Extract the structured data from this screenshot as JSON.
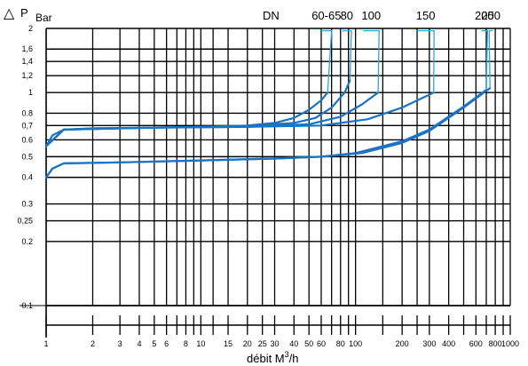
{
  "chart_data": {
    "type": "line",
    "title": "",
    "ylabel_symbol": "△",
    "ylabel": "P",
    "yunit": "Bar",
    "xlabel_prefix": "débit  M",
    "xlabel_sup": "3",
    "xlabel_suffix": "/h",
    "legend_title": "DN",
    "xscale": "log",
    "yscale": "log",
    "xlim": [
      1,
      1000
    ],
    "ylim": [
      0.1,
      2
    ],
    "grid": true,
    "colors": {
      "curve": "#1a73c4",
      "callout": "#2aa7dd",
      "grid": "#000000"
    },
    "y_ticks": [
      {
        "v": 2,
        "label": "2"
      },
      {
        "v": 1.6,
        "label": "1,6"
      },
      {
        "v": 1.4,
        "label": "1,4"
      },
      {
        "v": 1.2,
        "label": "1,2"
      },
      {
        "v": 1,
        "label": "1"
      },
      {
        "v": 0.8,
        "label": "0.8"
      },
      {
        "v": 0.7,
        "label": "0,7"
      },
      {
        "v": 0.6,
        "label": "0.6"
      },
      {
        "v": 0.5,
        "label": "0.5"
      },
      {
        "v": 0.4,
        "label": "0.4"
      },
      {
        "v": 0.3,
        "label": "0.3"
      },
      {
        "v": 0.25,
        "label": "0,25"
      },
      {
        "v": 0.2,
        "label": "0.2"
      },
      {
        "v": 0.1,
        "label": "0.1"
      }
    ],
    "x_ticks": [
      {
        "v": 1,
        "label": "1"
      },
      {
        "v": 2,
        "label": "2"
      },
      {
        "v": 3,
        "label": "3"
      },
      {
        "v": 4,
        "label": "4"
      },
      {
        "v": 5,
        "label": "5"
      },
      {
        "v": 6,
        "label": "6"
      },
      {
        "v": 8,
        "label": "8"
      },
      {
        "v": 10,
        "label": "10"
      },
      {
        "v": 15,
        "label": "15"
      },
      {
        "v": 20,
        "label": "20"
      },
      {
        "v": 25,
        "label": "25"
      },
      {
        "v": 30,
        "label": "30"
      },
      {
        "v": 40,
        "label": "40"
      },
      {
        "v": 50,
        "label": "50"
      },
      {
        "v": 60,
        "label": "60"
      },
      {
        "v": 80,
        "label": "80"
      },
      {
        "v": 100,
        "label": "100"
      },
      {
        "v": 200,
        "label": "200"
      },
      {
        "v": 300,
        "label": "300"
      },
      {
        "v": 400,
        "label": "400"
      },
      {
        "v": 600,
        "label": "600"
      },
      {
        "v": 800,
        "label": "800"
      },
      {
        "v": 1000,
        "label": "1000"
      }
    ],
    "x_grid_lines": [
      2,
      3,
      4,
      5,
      6,
      7,
      8,
      9,
      10,
      12,
      15,
      20,
      25,
      30,
      40,
      50,
      60,
      70,
      80,
      90,
      100,
      150,
      200,
      250,
      300,
      400,
      500,
      600,
      700,
      800,
      900,
      1000
    ],
    "series": [
      {
        "name": "60-65",
        "points": [
          [
            1,
            0.56
          ],
          [
            1.1,
            0.63
          ],
          [
            1.3,
            0.67
          ],
          [
            2,
            0.68
          ],
          [
            5,
            0.685
          ],
          [
            10,
            0.69
          ],
          [
            20,
            0.7
          ],
          [
            30,
            0.72
          ],
          [
            40,
            0.76
          ],
          [
            50,
            0.83
          ],
          [
            60,
            0.92
          ],
          [
            66,
            1.0
          ]
        ],
        "callout": [
          [
            66,
            1.0
          ],
          [
            70,
            1.95
          ],
          [
            60,
            1.95
          ]
        ]
      },
      {
        "name": "80",
        "points": [
          [
            1,
            0.56
          ],
          [
            1.3,
            0.67
          ],
          [
            5,
            0.685
          ],
          [
            20,
            0.695
          ],
          [
            40,
            0.72
          ],
          [
            55,
            0.76
          ],
          [
            70,
            0.85
          ],
          [
            85,
            1.0
          ],
          [
            92,
            1.14
          ]
        ],
        "callout": [
          [
            92,
            1.14
          ],
          [
            94,
            1.95
          ],
          [
            82,
            1.95
          ]
        ]
      },
      {
        "name": "100",
        "points": [
          [
            1,
            0.56
          ],
          [
            1.3,
            0.67
          ],
          [
            5,
            0.685
          ],
          [
            20,
            0.69
          ],
          [
            50,
            0.71
          ],
          [
            80,
            0.77
          ],
          [
            110,
            0.88
          ],
          [
            140,
            1.0
          ]
        ],
        "callout": [
          [
            140,
            1.0
          ],
          [
            142,
            1.95
          ],
          [
            112,
            1.95
          ]
        ]
      },
      {
        "name": "150",
        "points": [
          [
            1,
            0.56
          ],
          [
            1.3,
            0.67
          ],
          [
            5,
            0.685
          ],
          [
            20,
            0.69
          ],
          [
            60,
            0.7
          ],
          [
            120,
            0.75
          ],
          [
            200,
            0.85
          ],
          [
            320,
            1.0
          ]
        ],
        "callout": [
          [
            320,
            1.0
          ],
          [
            322,
            1.95
          ],
          [
            250,
            1.95
          ]
        ]
      },
      {
        "name": "200",
        "points": [
          [
            1,
            0.4
          ],
          [
            1.1,
            0.44
          ],
          [
            1.3,
            0.465
          ],
          [
            3,
            0.47
          ],
          [
            10,
            0.48
          ],
          [
            30,
            0.49
          ],
          [
            60,
            0.5
          ],
          [
            100,
            0.52
          ],
          [
            200,
            0.59
          ],
          [
            300,
            0.67
          ],
          [
            500,
            0.86
          ],
          [
            700,
            1.03
          ]
        ],
        "callout": [
          [
            700,
            1.03
          ],
          [
            712,
            1.95
          ],
          [
            650,
            1.95
          ]
        ]
      },
      {
        "name": "250",
        "points": [
          [
            1,
            0.4
          ],
          [
            1.1,
            0.44
          ],
          [
            1.3,
            0.465
          ],
          [
            3,
            0.47
          ],
          [
            10,
            0.48
          ],
          [
            30,
            0.49
          ],
          [
            60,
            0.5
          ],
          [
            110,
            0.52
          ],
          [
            200,
            0.58
          ],
          [
            300,
            0.66
          ],
          [
            500,
            0.85
          ],
          [
            740,
            1.05
          ]
        ],
        "callout": [
          [
            740,
            1.05
          ],
          [
            730,
            1.95
          ],
          [
            770,
            1.95
          ]
        ]
      }
    ]
  }
}
